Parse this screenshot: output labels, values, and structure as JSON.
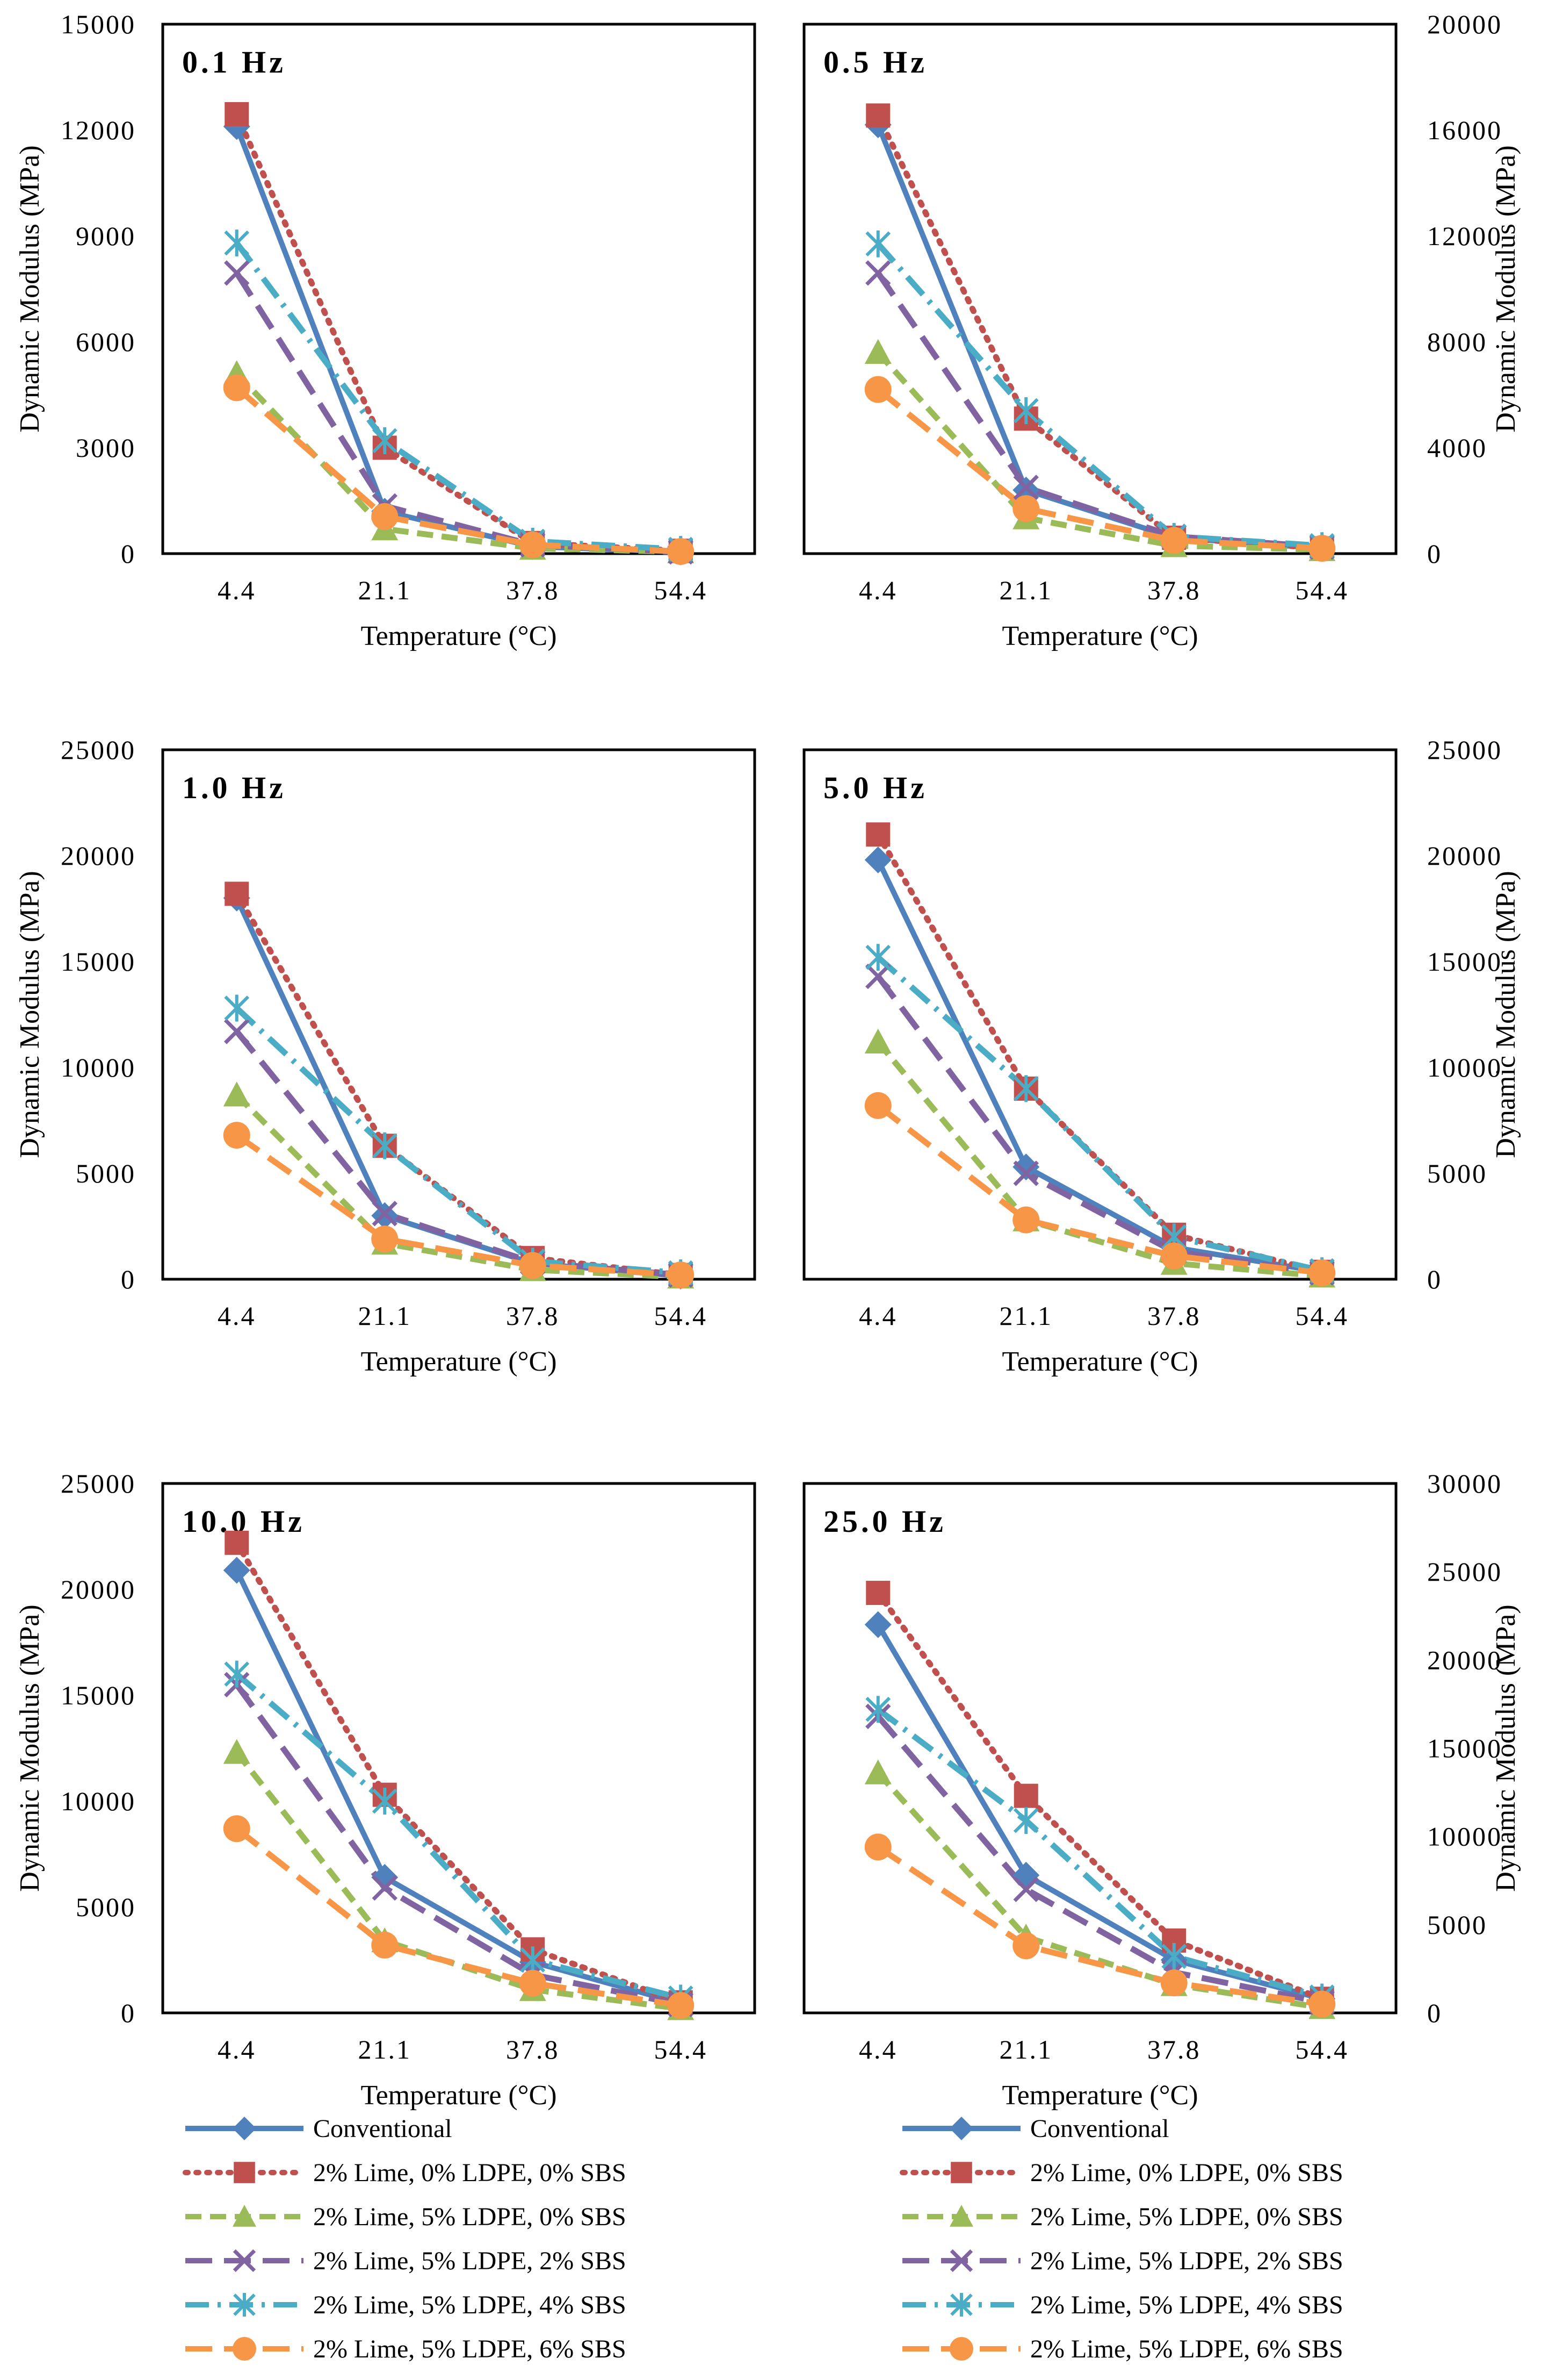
{
  "series_styles": [
    {
      "name": "Conventional",
      "color": "#4F81BD",
      "marker": "diamond",
      "dash": "solid"
    },
    {
      "name": "2% Lime, 0% LDPE, 0% SBS",
      "color": "#C0504D",
      "marker": "square",
      "dash": "dot"
    },
    {
      "name": "2% Lime, 5% LDPE, 0% SBS",
      "color": "#9BBB59",
      "marker": "triangle",
      "dash": "dash"
    },
    {
      "name": "2% Lime, 5% LDPE, 2% SBS",
      "color": "#8064A2",
      "marker": "x",
      "dash": "longdash"
    },
    {
      "name": "2% Lime, 5% LDPE, 4% SBS",
      "color": "#4BACC6",
      "marker": "star",
      "dash": "dashdot"
    },
    {
      "name": "2% Lime, 5% LDPE, 6% SBS",
      "color": "#F79646",
      "marker": "circle",
      "dash": "longdash"
    }
  ],
  "legends": [
    {
      "position": "bottom-left",
      "entries": [
        "Conventional",
        "2% Lime, 0% LDPE, 0% SBS",
        "2% Lime, 5% LDPE, 0% SBS",
        "2% Lime, 5% LDPE, 2% SBS",
        "2% Lime, 5% LDPE, 4% SBS",
        "2% Lime, 5% LDPE, 6% SBS"
      ]
    },
    {
      "position": "bottom-right",
      "entries": [
        "Conventional",
        "2% Lime, 0% LDPE, 0% SBS",
        "2% Lime, 5% LDPE, 0% SBS",
        "2% Lime, 5% LDPE, 2% SBS",
        "2% Lime, 5% LDPE, 4% SBS",
        "2% Lime, 5% LDPE, 6% SBS"
      ]
    }
  ],
  "chart_data": [
    {
      "type": "line",
      "title": "0.1 Hz",
      "xlabel": "Temperature (°C)",
      "ylabel": "Dynamic Modulus (MPa)",
      "y_axis_side": "left",
      "categories": [
        "4.4",
        "21.1",
        "37.8",
        "54.4"
      ],
      "ylim": [
        0,
        15000
      ],
      "yticks": [
        "0",
        "3000",
        "6000",
        "9000",
        "12000",
        "15000"
      ],
      "series": [
        {
          "name": "Conventional",
          "values": [
            12100,
            1200,
            200,
            50
          ]
        },
        {
          "name": "2% Lime, 0% LDPE, 0% SBS",
          "values": [
            12450,
            3000,
            300,
            80
          ]
        },
        {
          "name": "2% Lime, 5% LDPE, 0% SBS",
          "values": [
            5100,
            700,
            150,
            50
          ]
        },
        {
          "name": "2% Lime, 5% LDPE, 2% SBS",
          "values": [
            7950,
            1350,
            250,
            50
          ]
        },
        {
          "name": "2% Lime, 5% LDPE, 4% SBS",
          "values": [
            8800,
            3200,
            350,
            120
          ]
        },
        {
          "name": "2% Lime, 5% LDPE, 6% SBS",
          "values": [
            4700,
            1050,
            250,
            60
          ]
        }
      ]
    },
    {
      "type": "line",
      "title": "0.5 Hz",
      "xlabel": "Temperature (°C)",
      "ylabel": "Dynamic Modulus (MPa)",
      "y_axis_side": "right",
      "categories": [
        "4.4",
        "21.1",
        "37.8",
        "54.4"
      ],
      "ylim": [
        0,
        20000
      ],
      "yticks": [
        "0",
        "4000",
        "8000",
        "12000",
        "16000",
        "20000"
      ],
      "series": [
        {
          "name": "Conventional",
          "values": [
            16200,
            2400,
            600,
            200
          ]
        },
        {
          "name": "2% Lime, 0% LDPE, 0% SBS",
          "values": [
            16550,
            5100,
            600,
            200
          ]
        },
        {
          "name": "2% Lime, 5% LDPE, 0% SBS",
          "values": [
            7600,
            1350,
            300,
            150
          ]
        },
        {
          "name": "2% Lime, 5% LDPE, 2% SBS",
          "values": [
            10600,
            2500,
            650,
            250
          ]
        },
        {
          "name": "2% Lime, 5% LDPE, 4% SBS",
          "values": [
            11700,
            5400,
            650,
            300
          ]
        },
        {
          "name": "2% Lime, 5% LDPE, 6% SBS",
          "values": [
            6200,
            1700,
            500,
            200
          ]
        }
      ]
    },
    {
      "type": "line",
      "title": "1.0 Hz",
      "xlabel": "Temperature (°C)",
      "ylabel": "Dynamic Modulus (MPa)",
      "y_axis_side": "left",
      "categories": [
        "4.4",
        "21.1",
        "37.8",
        "54.4"
      ],
      "ylim": [
        0,
        25000
      ],
      "yticks": [
        "0",
        "5000",
        "10000",
        "15000",
        "20000",
        "25000"
      ],
      "series": [
        {
          "name": "Conventional",
          "values": [
            18000,
            3000,
            750,
            150
          ]
        },
        {
          "name": "2% Lime, 0% LDPE, 0% SBS",
          "values": [
            18200,
            6300,
            1000,
            200
          ]
        },
        {
          "name": "2% Lime, 5% LDPE, 0% SBS",
          "values": [
            8700,
            1700,
            450,
            100
          ]
        },
        {
          "name": "2% Lime, 5% LDPE, 2% SBS",
          "values": [
            11700,
            3100,
            800,
            200
          ]
        },
        {
          "name": "2% Lime, 5% LDPE, 4% SBS",
          "values": [
            12800,
            6300,
            850,
            300
          ]
        },
        {
          "name": "2% Lime, 5% LDPE, 6% SBS",
          "values": [
            6800,
            1900,
            650,
            200
          ]
        }
      ]
    },
    {
      "type": "line",
      "title": "5.0 Hz",
      "xlabel": "Temperature (°C)",
      "ylabel": "Dynamic Modulus (MPa)",
      "y_axis_side": "right",
      "categories": [
        "4.4",
        "21.1",
        "37.8",
        "54.4"
      ],
      "ylim": [
        0,
        25000
      ],
      "yticks": [
        "0",
        "5000",
        "10000",
        "15000",
        "20000",
        "25000"
      ],
      "series": [
        {
          "name": "Conventional",
          "values": [
            19800,
            5300,
            1500,
            350
          ]
        },
        {
          "name": "2% Lime, 0% LDPE, 0% SBS",
          "values": [
            21000,
            9000,
            2100,
            350
          ]
        },
        {
          "name": "2% Lime, 5% LDPE, 0% SBS",
          "values": [
            11200,
            2800,
            750,
            150
          ]
        },
        {
          "name": "2% Lime, 5% LDPE, 2% SBS",
          "values": [
            14300,
            5000,
            1300,
            300
          ]
        },
        {
          "name": "2% Lime, 5% LDPE, 4% SBS",
          "values": [
            15200,
            9000,
            2000,
            400
          ]
        },
        {
          "name": "2% Lime, 5% LDPE, 6% SBS",
          "values": [
            8200,
            2800,
            1100,
            300
          ]
        }
      ]
    },
    {
      "type": "line",
      "title": "10.0 Hz",
      "xlabel": "Temperature (°C)",
      "ylabel": "Dynamic Modulus (MPa)",
      "y_axis_side": "left",
      "categories": [
        "4.4",
        "21.1",
        "37.8",
        "54.4"
      ],
      "ylim": [
        0,
        25000
      ],
      "yticks": [
        "0",
        "5000",
        "10000",
        "15000",
        "20000",
        "25000"
      ],
      "series": [
        {
          "name": "Conventional",
          "values": [
            20900,
            6400,
            2400,
            450
          ]
        },
        {
          "name": "2% Lime, 0% LDPE, 0% SBS",
          "values": [
            22200,
            10300,
            3000,
            500
          ]
        },
        {
          "name": "2% Lime, 5% LDPE, 0% SBS",
          "values": [
            12300,
            3400,
            1100,
            200
          ]
        },
        {
          "name": "2% Lime, 5% LDPE, 2% SBS",
          "values": [
            15500,
            5900,
            1800,
            400
          ]
        },
        {
          "name": "2% Lime, 5% LDPE, 4% SBS",
          "values": [
            16000,
            10000,
            2500,
            700
          ]
        },
        {
          "name": "2% Lime, 5% LDPE, 6% SBS",
          "values": [
            8700,
            3200,
            1400,
            350
          ]
        }
      ]
    },
    {
      "type": "line",
      "title": "25.0 Hz",
      "xlabel": "Temperature (°C)",
      "ylabel": "Dynamic Modulus (MPa)",
      "y_axis_side": "right",
      "categories": [
        "4.4",
        "21.1",
        "37.8",
        "54.4"
      ],
      "ylim": [
        0,
        30000
      ],
      "yticks": [
        "0",
        "5000",
        "10000",
        "15000",
        "20000",
        "25000",
        "30000"
      ],
      "series": [
        {
          "name": "Conventional",
          "values": [
            22000,
            7800,
            3000,
            800
          ]
        },
        {
          "name": "2% Lime, 0% LDPE, 0% SBS",
          "values": [
            23800,
            12300,
            4100,
            800
          ]
        },
        {
          "name": "2% Lime, 5% LDPE, 0% SBS",
          "values": [
            13600,
            4300,
            1600,
            300
          ]
        },
        {
          "name": "2% Lime, 5% LDPE, 2% SBS",
          "values": [
            16800,
            7000,
            2300,
            600
          ]
        },
        {
          "name": "2% Lime, 5% LDPE, 4% SBS",
          "values": [
            17200,
            10900,
            3200,
            900
          ]
        },
        {
          "name": "2% Lime, 5% LDPE, 6% SBS",
          "values": [
            9400,
            3800,
            1700,
            500
          ]
        }
      ]
    }
  ]
}
